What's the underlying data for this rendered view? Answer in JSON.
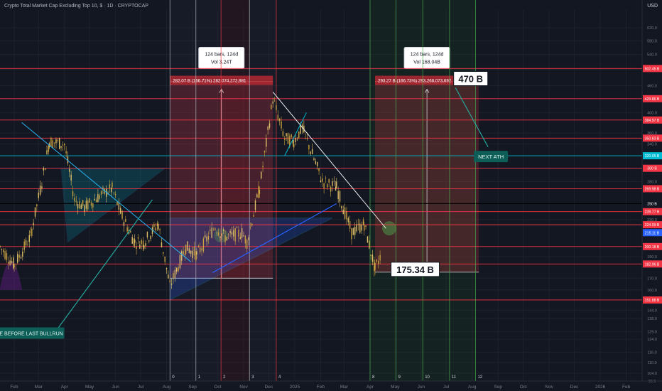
{
  "header": {
    "title": "Crypto Total Market Cap Excluding Top 10, $ · 1D · CRYPTOCAP",
    "currency": "USD"
  },
  "chart_data": {
    "type": "line",
    "title": "",
    "y_scale": "log",
    "ylim": [
      99.9,
      680
    ],
    "xlim": [
      "2024-01-15",
      "2026-02-20"
    ],
    "x_ticks": [
      "Feb",
      "Mar",
      "Apr",
      "May",
      "Jun",
      "Jul",
      "Aug",
      "Sep",
      "Oct",
      "Nov",
      "Dec",
      "2025",
      "Feb",
      "Mar",
      "Apr",
      "May",
      "Jun",
      "Jul",
      "Aug",
      "Sep",
      "Oct",
      "Nov",
      "Dec",
      "2026",
      "Feb"
    ],
    "y_ticks": [
      "620.0",
      "580.0",
      "540.0",
      "500.0",
      "460.0",
      "400.0",
      "360.0",
      "340.0",
      "300.0",
      "280.0",
      "250.0",
      "230.0",
      "190.0",
      "170.0",
      "160.0",
      "144.0",
      "138.0",
      "129.0",
      "124.0",
      "116.0",
      "110.0",
      "104.0",
      "99.9"
    ],
    "price_series": {
      "name": "",
      "x": [
        "2024-01-15",
        "2024-02-01",
        "2024-02-20",
        "2024-03-05",
        "2024-03-14",
        "2024-04-01",
        "2024-04-13",
        "2024-04-25",
        "2024-05-15",
        "2024-05-28",
        "2024-06-07",
        "2024-06-24",
        "2024-07-05",
        "2024-07-22",
        "2024-08-05",
        "2024-08-24",
        "2024-09-06",
        "2024-09-28",
        "2024-10-10",
        "2024-10-30",
        "2024-11-05",
        "2024-11-20",
        "2024-12-06",
        "2024-12-20",
        "2024-12-31",
        "2025-01-10",
        "2025-01-20",
        "2025-02-03",
        "2025-02-20",
        "2025-03-10",
        "2025-03-25",
        "2025-04-07",
        "2025-04-14"
      ],
      "y": [
        200,
        182,
        210,
        280,
        345,
        340,
        255,
        245,
        262,
        270,
        238,
        205,
        205,
        225,
        163,
        200,
        192,
        222,
        210,
        215,
        205,
        270,
        430,
        350,
        345,
        370,
        330,
        280,
        272,
        215,
        225,
        178,
        192
      ]
    },
    "horizontal_levels": [
      {
        "value": 502.45,
        "label": "502.45 B",
        "color": "#f23645"
      },
      {
        "value": 429.86,
        "label": "429.86 B",
        "color": "#f23645"
      },
      {
        "value": 384.97,
        "label": "384.97 B",
        "color": "#f23645"
      },
      {
        "value": 350.63,
        "label": "350.63 B",
        "color": "#f23645"
      },
      {
        "value": 320.05,
        "label": "320.05 B",
        "color": "#00bcd4"
      },
      {
        "value": 300.0,
        "label": "300 B",
        "color": "#f23645"
      },
      {
        "value": 269.98,
        "label": "269.98 B",
        "color": "#f23645"
      },
      {
        "value": 250.0,
        "label": "250 B",
        "color": "#000000"
      },
      {
        "value": 239.77,
        "label": "239.77 B",
        "color": "#f23645"
      },
      {
        "value": 224.09,
        "label": "224.09 B",
        "color": "#f23645"
      },
      {
        "value": 200.18,
        "label": "200.18 B",
        "color": "#f23645"
      },
      {
        "value": 182.96,
        "label": "182.96 B",
        "color": "#f23645"
      },
      {
        "value": 151.88,
        "label": "151.88 B",
        "color": "#f23645"
      }
    ],
    "current_price": {
      "value": 215.11,
      "label": "215.11 B"
    },
    "vertical_cycle_lines": [
      {
        "date": "2024-08-05",
        "label": "0"
      },
      {
        "date": "2024-09-05",
        "label": "1"
      },
      {
        "date": "2024-10-05",
        "label": "2"
      },
      {
        "date": "2024-11-08",
        "label": "3"
      },
      {
        "date": "2024-12-10",
        "label": "4"
      },
      {
        "date": "2025-04-01",
        "label": "8"
      },
      {
        "date": "2025-05-02",
        "label": "9"
      },
      {
        "date": "2025-06-03",
        "label": "10"
      },
      {
        "date": "2025-07-05",
        "label": "11"
      },
      {
        "date": "2025-08-05",
        "label": "12"
      }
    ],
    "measure_boxes": [
      {
        "x_start": "2024-08-05",
        "x_end": "2024-12-06",
        "y_start": 170,
        "y_end": 470,
        "range_label": "282.07 B (166.71%) 282,074,272,981",
        "bars_label": "124 bars, 124d",
        "vol_label": "Vol 3.24T"
      },
      {
        "x_start": "2025-04-07",
        "x_end": "2025-08-09",
        "y_start": 175.34,
        "y_end": 470,
        "range_label": "293.27 B (166.73%) 293,268,073,692",
        "bars_label": "124 bars, 124d",
        "vol_label": "Vol 168.04B"
      }
    ],
    "annotations": [
      {
        "text": "470 B",
        "x": "2025-07-15",
        "y": 470
      },
      {
        "text": "175.34 B",
        "x": "2025-05-08",
        "y": 175.34
      },
      {
        "text": "NEXT ATH",
        "x": "2025-08-20",
        "y": 320
      },
      {
        "text": "TRENDLINE BEFORE LAST BULLRUN",
        "x": "2024-03-25",
        "y": 128
      }
    ]
  },
  "colors": {
    "background": "#131722",
    "red_level": "#f23645",
    "cyan": "#00bcd4",
    "trend": "#29b6f6",
    "grid": "#1e222d",
    "label_green": "#0d4f4a"
  }
}
